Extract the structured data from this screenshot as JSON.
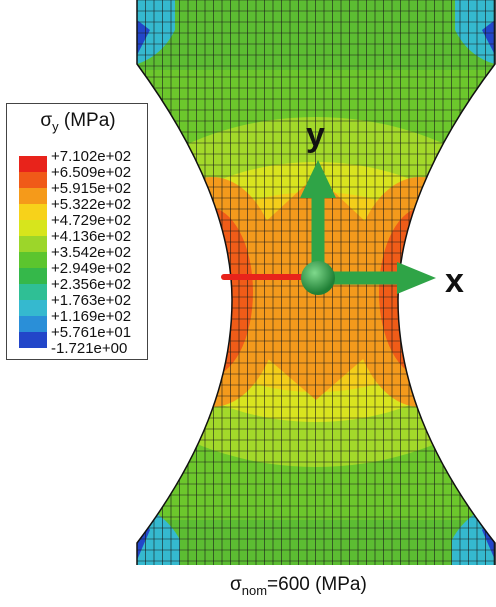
{
  "legend": {
    "symbol": "σ",
    "subscript": "y",
    "unit": " (MPa)",
    "entries": [
      {
        "value": "+7.102e+02",
        "color": "#e8231b"
      },
      {
        "value": "+6.509e+02",
        "color": "#f05a18"
      },
      {
        "value": "+5.915e+02",
        "color": "#f59a1a"
      },
      {
        "value": "+5.322e+02",
        "color": "#f7d21a"
      },
      {
        "value": "+4.729e+02",
        "color": "#d7e51c"
      },
      {
        "value": "+4.136e+02",
        "color": "#9cd62a"
      },
      {
        "value": "+3.542e+02",
        "color": "#5cc52e"
      },
      {
        "value": "+2.949e+02",
        "color": "#35b84a"
      },
      {
        "value": "+2.356e+02",
        "color": "#2fbf95"
      },
      {
        "value": "+1.763e+02",
        "color": "#35b9cf"
      },
      {
        "value": "+1.169e+02",
        "color": "#2a8fd8"
      },
      {
        "value": "+5.761e+01",
        "color": "#2246c9"
      },
      {
        "value": "-1.721e+00",
        "color": ""
      }
    ]
  },
  "axes": {
    "x_label": "x",
    "y_label": "y"
  },
  "caption": {
    "symbol": "σ",
    "subscript": "nom",
    "text": "=600 (MPa)"
  },
  "colors": {
    "mesh_line": "#1a1a1a",
    "triad_green": "#2fa447",
    "triad_red": "#e8231b"
  }
}
